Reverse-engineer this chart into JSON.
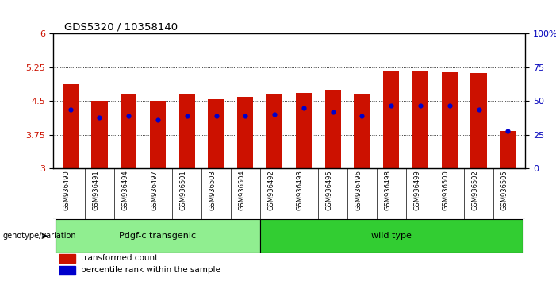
{
  "title": "GDS5320 / 10358140",
  "samples": [
    "GSM936490",
    "GSM936491",
    "GSM936494",
    "GSM936497",
    "GSM936501",
    "GSM936503",
    "GSM936504",
    "GSM936492",
    "GSM936493",
    "GSM936495",
    "GSM936496",
    "GSM936498",
    "GSM936499",
    "GSM936500",
    "GSM936502",
    "GSM936505"
  ],
  "transformed_count": [
    4.88,
    4.5,
    4.65,
    4.5,
    4.65,
    4.55,
    4.6,
    4.65,
    4.68,
    4.75,
    4.65,
    5.17,
    5.17,
    5.15,
    5.12,
    3.83
  ],
  "percentile_rank": [
    44,
    38,
    39,
    36,
    39,
    39,
    39,
    40,
    45,
    42,
    39,
    47,
    47,
    47,
    44,
    28
  ],
  "groups": [
    {
      "label": "Pdgf-c transgenic",
      "start": 0,
      "end": 7,
      "color": "#90EE90"
    },
    {
      "label": "wild type",
      "start": 7,
      "end": 16,
      "color": "#32CD32"
    }
  ],
  "ylim_left": [
    3,
    6
  ],
  "ylim_right": [
    0,
    100
  ],
  "yticks_left": [
    3,
    3.75,
    4.5,
    5.25,
    6
  ],
  "yticks_right": [
    0,
    25,
    50,
    75,
    100
  ],
  "bar_color": "#CC1100",
  "dot_color": "#0000CC",
  "bar_width": 0.55,
  "background_color": "#ffffff",
  "plot_bg_color": "#ffffff",
  "grid_color": "#000000",
  "left_tick_color": "#CC1100",
  "right_tick_color": "#0000BB",
  "legend_items": [
    {
      "label": "transformed count",
      "color": "#CC1100"
    },
    {
      "label": "percentile rank within the sample",
      "color": "#0000CC"
    }
  ],
  "genotype_label": "genotype/variation",
  "xticklabel_bg": "#C8C8C8"
}
